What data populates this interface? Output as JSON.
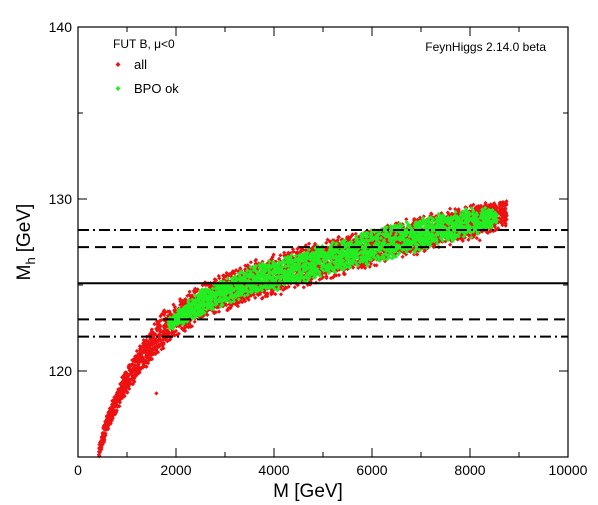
{
  "chart_data": {
    "type": "scatter",
    "xlabel": "M [GeV]",
    "ylabel_main": "M",
    "ylabel_sub": "h",
    "ylabel_unit": "[GeV]",
    "xlim": [
      0,
      10000
    ],
    "ylim": [
      115,
      140
    ],
    "xticks": [
      0,
      2000,
      4000,
      6000,
      8000,
      10000
    ],
    "yticks": [
      120,
      130,
      140
    ],
    "x_minor_step": 1000,
    "y_minor_step": 5,
    "annotation_left": "FUT B, μ<0",
    "annotation_right": "FeynHiggs 2.14.0 beta",
    "grid": false,
    "legend_position": "top-left",
    "series": [
      {
        "name": "all",
        "color": "#ee1111",
        "marker": "diamond",
        "band": {
          "x_range": [
            420,
            8750
          ],
          "center": [
            [
              420,
              115.3
            ],
            [
              600,
              117.0
            ],
            [
              900,
              119.0
            ],
            [
              1300,
              120.8
            ],
            [
              1800,
              122.6
            ],
            [
              2500,
              124.0
            ],
            [
              3500,
              125.2
            ],
            [
              4500,
              126.0
            ],
            [
              5500,
              126.8
            ],
            [
              6500,
              127.6
            ],
            [
              7500,
              128.3
            ],
            [
              8300,
              128.9
            ],
            [
              8750,
              129.2
            ]
          ],
          "half_width": [
            [
              420,
              0.5
            ],
            [
              900,
              0.8
            ],
            [
              1500,
              1.1
            ],
            [
              2500,
              1.2
            ],
            [
              4000,
              1.3
            ],
            [
              6000,
              1.2
            ],
            [
              8000,
              1.1
            ],
            [
              8750,
              0.9
            ]
          ],
          "point_count": 3400
        },
        "scattered": [
          [
            1600,
            118.7
          ],
          [
            2400,
            123.8
          ],
          [
            3700,
            124.7
          ],
          [
            5300,
            127.6
          ],
          [
            7000,
            128.2
          ],
          [
            8200,
            127.6
          ]
        ]
      },
      {
        "name": "BPO ok",
        "color": "#22ee22",
        "marker": "diamond",
        "band": {
          "x_range": [
            1850,
            8550
          ],
          "center": [
            [
              1850,
              122.7
            ],
            [
              2500,
              124.0
            ],
            [
              3500,
              125.2
            ],
            [
              4500,
              126.0
            ],
            [
              5500,
              126.8
            ],
            [
              6500,
              127.6
            ],
            [
              7500,
              128.3
            ],
            [
              8550,
              129.0
            ]
          ],
          "half_width": [
            [
              1850,
              0.4
            ],
            [
              2500,
              0.8
            ],
            [
              4000,
              1.0
            ],
            [
              6000,
              1.05
            ],
            [
              8000,
              0.95
            ],
            [
              8550,
              0.6
            ]
          ],
          "point_count": 2300
        }
      }
    ],
    "reference_lines": [
      {
        "y": 125.1,
        "style": "solid"
      },
      {
        "y": 127.2,
        "style": "dashed"
      },
      {
        "y": 123.0,
        "style": "dashed"
      },
      {
        "y": 128.2,
        "style": "dash-dot"
      },
      {
        "y": 122.0,
        "style": "dash-dot"
      }
    ]
  }
}
